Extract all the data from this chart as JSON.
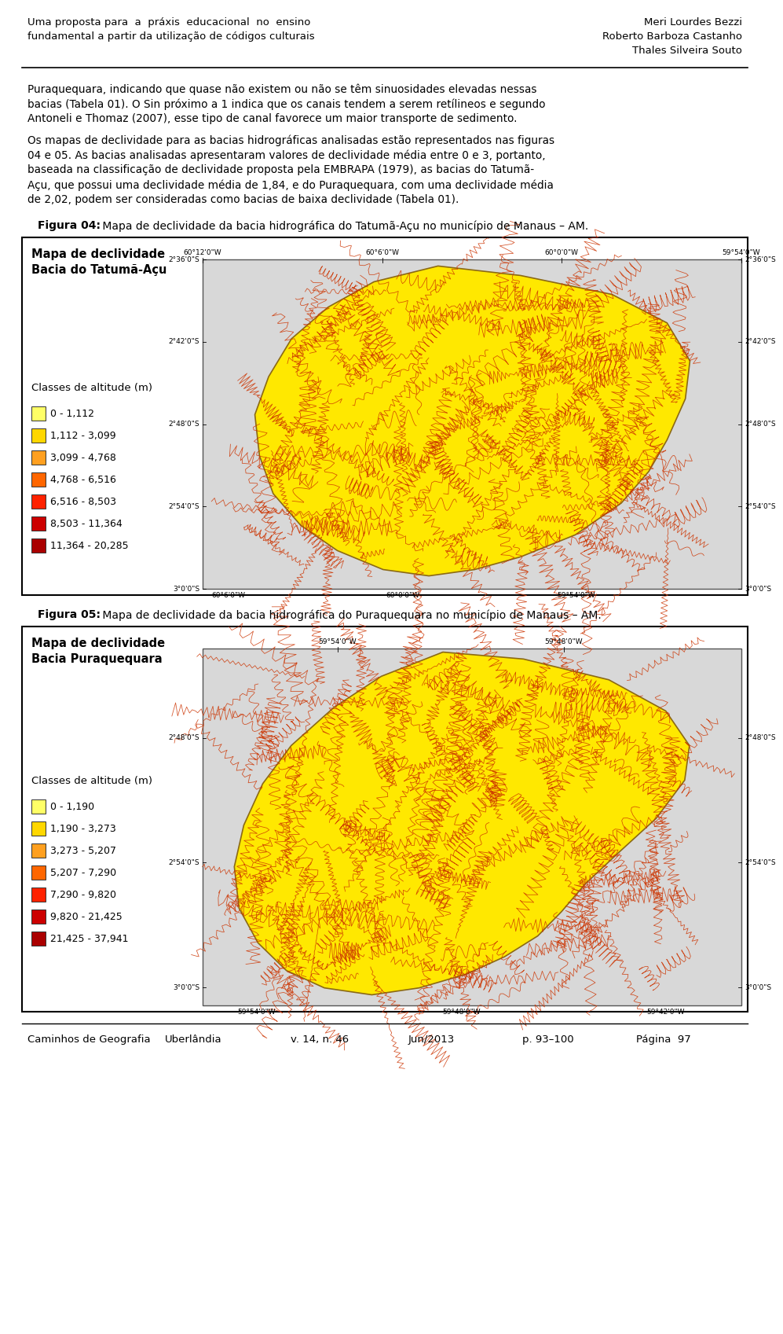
{
  "title_left": "Uma proposta para  a  práxis  educacional  no  ensino\nfundamental a partir da utilização de códigos culturais",
  "title_right": "Meri Lourdes Bezzi\nRoberto Barboza Castanho\nThales Silveira Souto",
  "p1_lines": [
    "Puraquequara, indicando que quase não existem ou não se têm sinuosidades elevadas nessas",
    "bacias (Tabela 01). O Sin próximo a 1 indica que os canais tendem a serem retílineos e segundo",
    "Antoneli e Thomaz (2007), esse tipo de canal favorece um maior transporte de sedimento."
  ],
  "p2_lines": [
    "Os mapas de declividade para as bacias hidrográficas analisadas estão representados nas figuras",
    "04 e 05. As bacias analisadas apresentaram valores de declividade média entre 0 e 3, portanto,",
    "baseada na classificação de declividade proposta pela EMBRAPA (1979), as bacias do Tatumã-",
    "Açu, que possui uma declividade média de 1,84, e do Puraquequara, com uma declividade média",
    "de 2,02, podem ser consideradas como bacias de baixa declividade (Tabela 01)."
  ],
  "fig4_caption_bold": "Figura 04:",
  "fig4_caption_rest": " Mapa de declividade da bacia hidrográfica do Tatumã-Açu no município de Manaus – AM.",
  "fig5_caption_bold": "Figura 05:",
  "fig5_caption_rest": " Mapa de declividade da bacia hidrográfica do Puraquequara no município de Manaus – AM.",
  "fig4_map_title": "Mapa de declividade\nBacia do Tatumã-Açu",
  "fig5_map_title": "Mapa de declividade\nBacia Puraquequara",
  "fig4_legend_title": "Classes de altitude (m)",
  "fig5_legend_title": "Classes de altitude (m)",
  "fig4_classes": [
    "0 - 1,112",
    "1,112 - 3,099",
    "3,099 - 4,768",
    "4,768 - 6,516",
    "6,516 - 8,503",
    "8,503 - 11,364",
    "11,364 - 20,285"
  ],
  "fig5_classes": [
    "0 - 1,190",
    "1,190 - 3,273",
    "3,273 - 5,207",
    "5,207 - 7,290",
    "7,290 - 9,820",
    "9,820 - 21,425",
    "21,425 - 37,941"
  ],
  "legend_colors": [
    "#FFFF66",
    "#FFD700",
    "#FFA020",
    "#FF6600",
    "#FF2200",
    "#CC0000",
    "#AA0000"
  ],
  "fig4_top_labels": [
    "60°12'0\"W",
    "60°6'0\"W",
    "60°0'0\"W",
    "59°54'0\"W"
  ],
  "fig4_left_labels": [
    "2°36'0\"S",
    "2°42'0\"S",
    "2°48'0\"S",
    "2°54'0\"S",
    "3°0'0\"S"
  ],
  "fig4_right_labels": [
    "2°36'0\"S",
    "2°42'0\"S",
    "2°48'0\"S",
    "2°54'0\"S",
    "3°0'0\"S"
  ],
  "fig4_bottom_labels": [
    "60°6'0\"W",
    "60°0'0\"W",
    "59°54'0\"W"
  ],
  "fig5_top_labels": [
    "59°54'0\"W",
    "59°48'0\"W"
  ],
  "fig5_left_labels": [
    "2°48'0\"S",
    "2°54'0\"S",
    "3°0'0\"S"
  ],
  "fig5_right_labels": [
    "2°48'0\"S",
    "2°54'0\"S",
    "3°0'0\"S"
  ],
  "fig5_bottom_labels": [
    "59°54'0\"W",
    "59°48'0\"W",
    "59°42'0\"W"
  ],
  "footer_items": [
    "Caminhos de Geografia",
    "Uberlândia",
    "v. 14, n. 46",
    "Jun/2013",
    "p. 93–100",
    "Página  97"
  ],
  "map_bg_color": "#D8D8D8",
  "basin_fill": "#FFE800",
  "contour_color": "#CC3300",
  "background_color": "#ffffff"
}
